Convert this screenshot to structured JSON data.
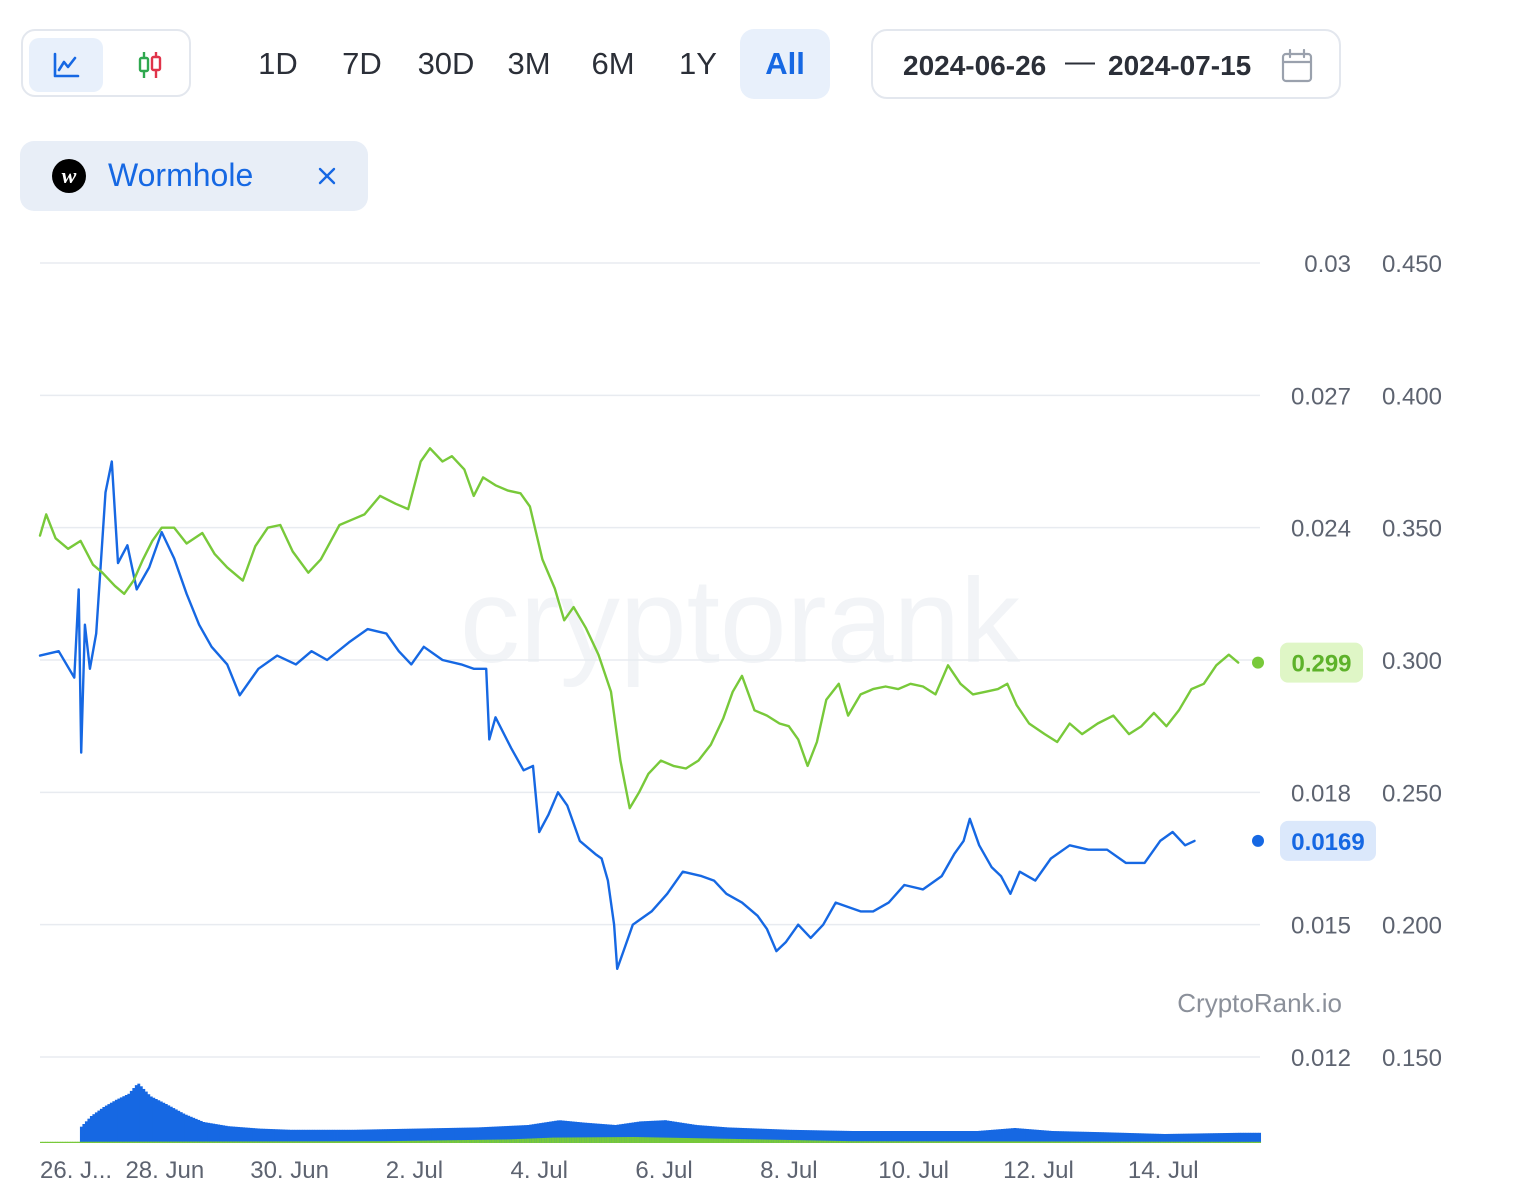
{
  "toolbar": {
    "chart_types": [
      {
        "name": "line",
        "icon": "line-chart-icon",
        "active": true
      },
      {
        "name": "candles",
        "icon": "candlestick-icon",
        "active": false
      }
    ],
    "ranges": [
      "1D",
      "7D",
      "30D",
      "3M",
      "6M",
      "1Y",
      "All"
    ],
    "active_range": "All",
    "date_from": "2024-06-26",
    "date_separator": "—",
    "date_to": "2024-07-15",
    "calendar_icon": "calendar-icon"
  },
  "coin": {
    "name": "Wormhole",
    "logo_icon": "wormhole-logo-icon",
    "remove_icon": "close-icon"
  },
  "chart_data": {
    "type": "line",
    "watermark": "cryptorank",
    "source_label": "CryptoRank.io",
    "x_ticks": [
      "26. J...",
      "28. Jun",
      "30. Jun",
      "2. Jul",
      "4. Jul",
      "6. Jul",
      "8. Jul",
      "10. Jul",
      "12. Jul",
      "14. Jul"
    ],
    "x_range_days": [
      0,
      19.55
    ],
    "grid": true,
    "y_left": {
      "ticks": [
        "0.03",
        "0.027",
        "0.024",
        "0.018",
        "0.015",
        "0.012"
      ],
      "range": [
        0.012,
        0.03
      ]
    },
    "y_right": {
      "ticks": [
        "0.450",
        "0.400",
        "0.350",
        "0.300",
        "0.250",
        "0.200",
        "0.150"
      ],
      "range": [
        0.15,
        0.45
      ]
    },
    "colors": {
      "blue": "#1668e3",
      "green": "#78c93a"
    },
    "series": [
      {
        "key": "blue",
        "axis": "left",
        "color": "#1668e3",
        "last_value": "0.0169",
        "points": [
          [
            0.0,
            0.0211
          ],
          [
            0.3,
            0.0212
          ],
          [
            0.55,
            0.0206
          ],
          [
            0.62,
            0.0226
          ],
          [
            0.66,
            0.0189
          ],
          [
            0.72,
            0.0218
          ],
          [
            0.8,
            0.0208
          ],
          [
            0.9,
            0.0216
          ],
          [
            1.05,
            0.0248
          ],
          [
            1.15,
            0.0255
          ],
          [
            1.25,
            0.0232
          ],
          [
            1.4,
            0.0236
          ],
          [
            1.55,
            0.0226
          ],
          [
            1.75,
            0.0231
          ],
          [
            1.95,
            0.0239
          ],
          [
            2.15,
            0.0233
          ],
          [
            2.35,
            0.0225
          ],
          [
            2.55,
            0.0218
          ],
          [
            2.75,
            0.0213
          ],
          [
            3.0,
            0.0209
          ],
          [
            3.2,
            0.0202
          ],
          [
            3.5,
            0.0208
          ],
          [
            3.8,
            0.0211
          ],
          [
            4.1,
            0.0209
          ],
          [
            4.35,
            0.0212
          ],
          [
            4.6,
            0.021
          ],
          [
            4.95,
            0.0214
          ],
          [
            5.25,
            0.0217
          ],
          [
            5.55,
            0.0216
          ],
          [
            5.75,
            0.0212
          ],
          [
            5.95,
            0.0209
          ],
          [
            6.15,
            0.0213
          ],
          [
            6.45,
            0.021
          ],
          [
            6.75,
            0.0209
          ],
          [
            6.95,
            0.0208
          ],
          [
            7.15,
            0.0208
          ],
          [
            7.2,
            0.0192
          ],
          [
            7.3,
            0.0197
          ],
          [
            7.55,
            0.019
          ],
          [
            7.75,
            0.0185
          ],
          [
            7.9,
            0.0186
          ],
          [
            8.0,
            0.0171
          ],
          [
            8.15,
            0.0175
          ],
          [
            8.3,
            0.018
          ],
          [
            8.45,
            0.0177
          ],
          [
            8.65,
            0.0169
          ],
          [
            8.9,
            0.0166
          ],
          [
            9.0,
            0.0165
          ],
          [
            9.1,
            0.016
          ],
          [
            9.2,
            0.015
          ],
          [
            9.25,
            0.014
          ],
          [
            9.35,
            0.0144
          ],
          [
            9.5,
            0.015
          ],
          [
            9.8,
            0.0153
          ],
          [
            10.05,
            0.0157
          ],
          [
            10.3,
            0.0162
          ],
          [
            10.6,
            0.0161
          ],
          [
            10.8,
            0.016
          ],
          [
            11.0,
            0.0157
          ],
          [
            11.25,
            0.0155
          ],
          [
            11.5,
            0.0152
          ],
          [
            11.65,
            0.0149
          ],
          [
            11.8,
            0.0144
          ],
          [
            11.95,
            0.0146
          ],
          [
            12.15,
            0.015
          ],
          [
            12.35,
            0.0147
          ],
          [
            12.55,
            0.015
          ],
          [
            12.75,
            0.0155
          ],
          [
            12.95,
            0.0154
          ],
          [
            13.15,
            0.0153
          ],
          [
            13.35,
            0.0153
          ],
          [
            13.6,
            0.0155
          ],
          [
            13.85,
            0.0159
          ],
          [
            14.15,
            0.0158
          ],
          [
            14.45,
            0.0161
          ],
          [
            14.65,
            0.0166
          ],
          [
            14.8,
            0.0169
          ],
          [
            14.9,
            0.0174
          ],
          [
            15.05,
            0.0168
          ],
          [
            15.25,
            0.0163
          ],
          [
            15.4,
            0.0161
          ],
          [
            15.55,
            0.0157
          ],
          [
            15.7,
            0.0162
          ],
          [
            15.95,
            0.016
          ],
          [
            16.2,
            0.0165
          ],
          [
            16.5,
            0.0168
          ],
          [
            16.8,
            0.0167
          ],
          [
            17.1,
            0.0167
          ],
          [
            17.4,
            0.0164
          ],
          [
            17.7,
            0.0164
          ],
          [
            17.95,
            0.0169
          ],
          [
            18.15,
            0.0171
          ],
          [
            18.35,
            0.0168
          ],
          [
            18.5,
            0.0169
          ]
        ]
      },
      {
        "key": "green",
        "axis": "right",
        "color": "#78c93a",
        "last_value": "0.299",
        "points": [
          [
            0.0,
            0.347
          ],
          [
            0.1,
            0.355
          ],
          [
            0.25,
            0.346
          ],
          [
            0.45,
            0.342
          ],
          [
            0.65,
            0.345
          ],
          [
            0.85,
            0.336
          ],
          [
            1.0,
            0.333
          ],
          [
            1.2,
            0.328
          ],
          [
            1.35,
            0.325
          ],
          [
            1.5,
            0.33
          ],
          [
            1.65,
            0.338
          ],
          [
            1.8,
            0.345
          ],
          [
            1.95,
            0.35
          ],
          [
            2.15,
            0.35
          ],
          [
            2.35,
            0.344
          ],
          [
            2.6,
            0.348
          ],
          [
            2.8,
            0.34
          ],
          [
            3.0,
            0.335
          ],
          [
            3.25,
            0.33
          ],
          [
            3.45,
            0.343
          ],
          [
            3.65,
            0.35
          ],
          [
            3.85,
            0.351
          ],
          [
            4.05,
            0.341
          ],
          [
            4.3,
            0.333
          ],
          [
            4.5,
            0.338
          ],
          [
            4.8,
            0.351
          ],
          [
            5.0,
            0.353
          ],
          [
            5.2,
            0.355
          ],
          [
            5.45,
            0.362
          ],
          [
            5.7,
            0.359
          ],
          [
            5.9,
            0.357
          ],
          [
            6.1,
            0.375
          ],
          [
            6.25,
            0.38
          ],
          [
            6.45,
            0.375
          ],
          [
            6.6,
            0.377
          ],
          [
            6.8,
            0.372
          ],
          [
            6.95,
            0.362
          ],
          [
            7.1,
            0.369
          ],
          [
            7.3,
            0.366
          ],
          [
            7.5,
            0.364
          ],
          [
            7.7,
            0.363
          ],
          [
            7.85,
            0.358
          ],
          [
            8.05,
            0.338
          ],
          [
            8.25,
            0.327
          ],
          [
            8.4,
            0.315
          ],
          [
            8.55,
            0.32
          ],
          [
            8.75,
            0.312
          ],
          [
            8.95,
            0.302
          ],
          [
            9.15,
            0.288
          ],
          [
            9.3,
            0.262
          ],
          [
            9.45,
            0.244
          ],
          [
            9.6,
            0.25
          ],
          [
            9.75,
            0.257
          ],
          [
            9.95,
            0.262
          ],
          [
            10.15,
            0.26
          ],
          [
            10.35,
            0.259
          ],
          [
            10.55,
            0.262
          ],
          [
            10.75,
            0.268
          ],
          [
            10.95,
            0.278
          ],
          [
            11.1,
            0.288
          ],
          [
            11.25,
            0.294
          ],
          [
            11.45,
            0.281
          ],
          [
            11.65,
            0.279
          ],
          [
            11.85,
            0.276
          ],
          [
            12.0,
            0.275
          ],
          [
            12.15,
            0.27
          ],
          [
            12.3,
            0.26
          ],
          [
            12.45,
            0.269
          ],
          [
            12.6,
            0.285
          ],
          [
            12.8,
            0.291
          ],
          [
            12.95,
            0.279
          ],
          [
            13.15,
            0.287
          ],
          [
            13.35,
            0.289
          ],
          [
            13.55,
            0.29
          ],
          [
            13.75,
            0.289
          ],
          [
            13.95,
            0.291
          ],
          [
            14.15,
            0.29
          ],
          [
            14.35,
            0.287
          ],
          [
            14.55,
            0.298
          ],
          [
            14.75,
            0.291
          ],
          [
            14.95,
            0.287
          ],
          [
            15.15,
            0.288
          ],
          [
            15.35,
            0.289
          ],
          [
            15.5,
            0.291
          ],
          [
            15.65,
            0.283
          ],
          [
            15.85,
            0.276
          ],
          [
            16.1,
            0.272
          ],
          [
            16.3,
            0.269
          ],
          [
            16.5,
            0.276
          ],
          [
            16.7,
            0.272
          ],
          [
            16.95,
            0.276
          ],
          [
            17.2,
            0.279
          ],
          [
            17.45,
            0.272
          ],
          [
            17.65,
            0.275
          ],
          [
            17.85,
            0.28
          ],
          [
            18.05,
            0.275
          ],
          [
            18.25,
            0.281
          ],
          [
            18.45,
            0.289
          ],
          [
            18.65,
            0.291
          ],
          [
            18.85,
            0.298
          ],
          [
            19.05,
            0.302
          ],
          [
            19.2,
            0.299
          ]
        ]
      }
    ],
    "volume": {
      "colors": [
        "#1668e3",
        "#78c93a"
      ],
      "blue_profile": [
        [
          0.0,
          0.0
        ],
        [
          0.6,
          0.0
        ],
        [
          0.62,
          0.25
        ],
        [
          0.8,
          0.45
        ],
        [
          1.0,
          0.6
        ],
        [
          1.2,
          0.72
        ],
        [
          1.4,
          0.82
        ],
        [
          1.55,
          1.0
        ],
        [
          1.75,
          0.78
        ],
        [
          2.0,
          0.65
        ],
        [
          2.3,
          0.48
        ],
        [
          2.6,
          0.35
        ],
        [
          3.0,
          0.28
        ],
        [
          3.5,
          0.24
        ],
        [
          4.0,
          0.22
        ],
        [
          5.0,
          0.22
        ],
        [
          6.0,
          0.24
        ],
        [
          7.0,
          0.26
        ],
        [
          7.8,
          0.3
        ],
        [
          8.3,
          0.38
        ],
        [
          8.7,
          0.34
        ],
        [
          9.2,
          0.3
        ],
        [
          9.6,
          0.36
        ],
        [
          10.0,
          0.38
        ],
        [
          10.5,
          0.3
        ],
        [
          11.0,
          0.26
        ],
        [
          12.0,
          0.22
        ],
        [
          13.0,
          0.2
        ],
        [
          14.0,
          0.2
        ],
        [
          15.0,
          0.2
        ],
        [
          15.6,
          0.25
        ],
        [
          16.2,
          0.2
        ],
        [
          17.0,
          0.18
        ],
        [
          18.0,
          0.15
        ],
        [
          19.2,
          0.17
        ]
      ],
      "green_profile": [
        [
          0.0,
          0.02
        ],
        [
          5.5,
          0.03
        ],
        [
          7.5,
          0.06
        ],
        [
          8.2,
          0.09
        ],
        [
          9.5,
          0.1
        ],
        [
          10.5,
          0.08
        ],
        [
          12.0,
          0.05
        ],
        [
          13.0,
          0.03
        ],
        [
          19.2,
          0.02
        ]
      ]
    }
  }
}
